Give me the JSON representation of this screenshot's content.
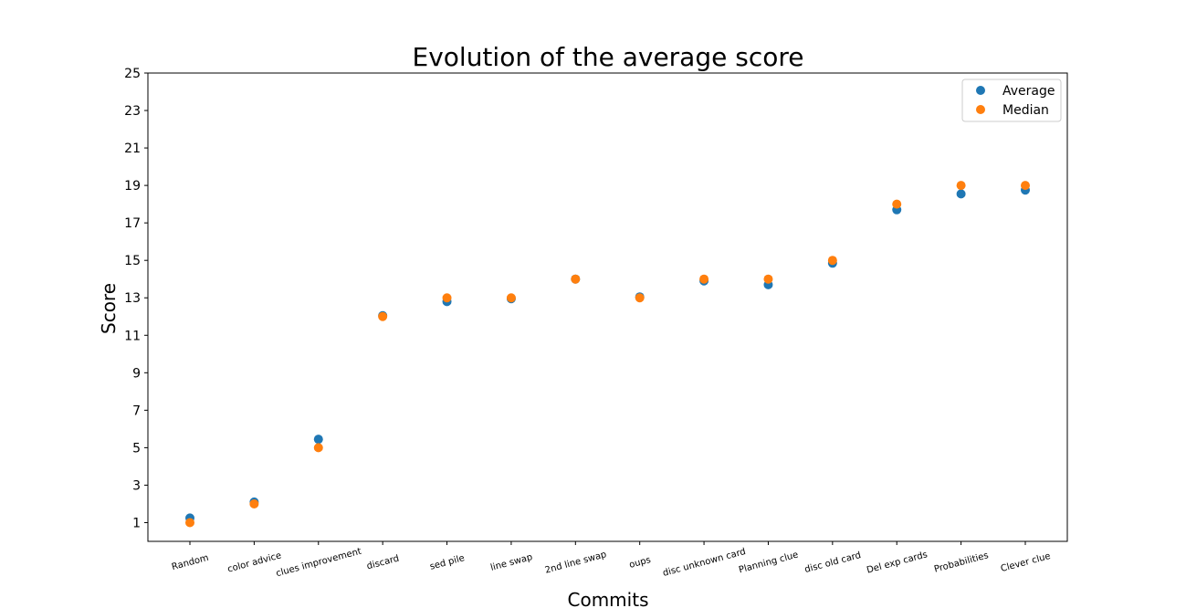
{
  "chart_data": {
    "type": "scatter",
    "title": "Evolution of the average score",
    "xlabel": "Commits",
    "ylabel": "Score",
    "categories": [
      "Random",
      "color advice",
      "clues improvement",
      "discard",
      "sed pile",
      "line swap",
      "2nd line swap",
      "oups",
      "disc unknown card",
      "Planning clue",
      "disc old card",
      "Del exp cards",
      "Probabilities",
      "Clever clue"
    ],
    "yticks": [
      1,
      3,
      5,
      7,
      9,
      11,
      13,
      15,
      17,
      19,
      21,
      23,
      25
    ],
    "ylim": [
      0,
      25
    ],
    "grid": false,
    "legend": "top-right",
    "series": [
      {
        "name": "Average",
        "color": "#1f77b4",
        "values": [
          1.25,
          2.1,
          5.45,
          12.05,
          12.8,
          12.95,
          14.0,
          13.05,
          13.9,
          13.7,
          14.85,
          17.7,
          18.55,
          18.75
        ]
      },
      {
        "name": "Median",
        "color": "#ff7f0e",
        "values": [
          1,
          2,
          5,
          12,
          13,
          13,
          14,
          13,
          14,
          14,
          15,
          18,
          19,
          19
        ]
      }
    ]
  }
}
